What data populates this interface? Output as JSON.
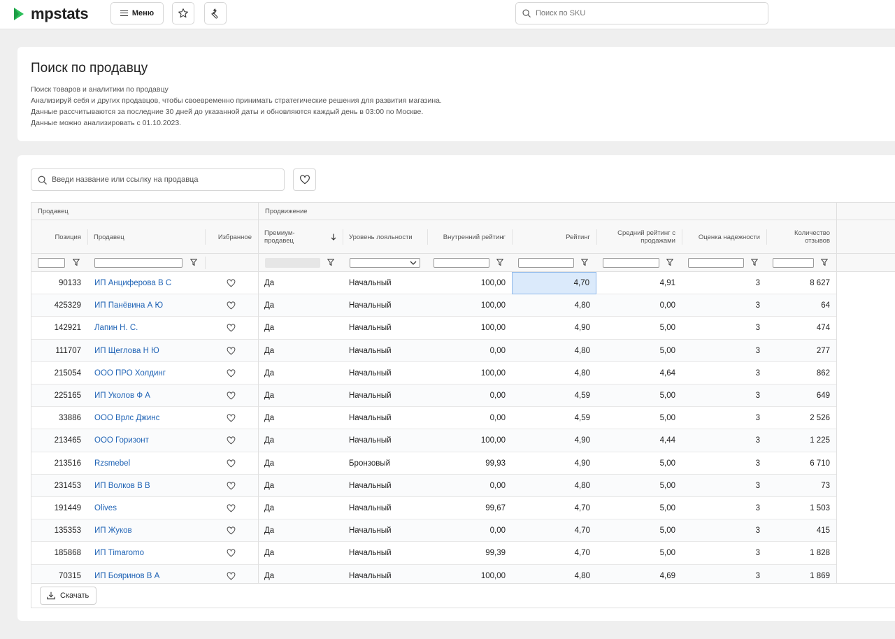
{
  "app": {
    "logo_text": "mpstats",
    "menu_label": "Меню",
    "sku_search_placeholder": "Поиск по SKU",
    "brand_color": "#2bbf59"
  },
  "info": {
    "title": "Поиск по продавцу",
    "lines": [
      "Поиск товаров и аналитики по продавцу",
      "Анализируй себя и других продавцов, чтобы своевременно принимать стратегические решения для развития магазина.",
      "Данные рассчитываются за последние 30 дней до указанной даты и обновляются каждый день в 03:00 по Москве.",
      "Данные можно анализировать с 01.10.2023."
    ]
  },
  "table": {
    "search_placeholder": "Введи название или ссылку на продавца",
    "groups": {
      "seller": "Продавец",
      "promotion": "Продвижение"
    },
    "columns": {
      "position": "Позиция",
      "seller": "Продавец",
      "favorite": "Избранное",
      "premium_line1": "Премиум-",
      "premium_line2": "продавец",
      "loyalty": "Уровень лояльности",
      "internal_rating": "Внутренний рейтинг",
      "rating": "Рейтинг",
      "avg_rating_line1": "Средний рейтинг с",
      "avg_rating_line2": "продажами",
      "reliability": "Оценка надежности",
      "reviews_line1": "Количество",
      "reviews_line2": "отзывов"
    },
    "rows": [
      {
        "position": "90133",
        "seller": "ИП Анциферова В С",
        "premium": "Да",
        "loyalty": "Начальный",
        "internal": "100,00",
        "rating": "4,70",
        "avg": "4,91",
        "reliability": "3",
        "reviews": "8 627"
      },
      {
        "position": "425329",
        "seller": "ИП Панёвина А Ю",
        "premium": "Да",
        "loyalty": "Начальный",
        "internal": "100,00",
        "rating": "4,80",
        "avg": "0,00",
        "reliability": "3",
        "reviews": "64"
      },
      {
        "position": "142921",
        "seller": "Лапин Н. С.",
        "premium": "Да",
        "loyalty": "Начальный",
        "internal": "100,00",
        "rating": "4,90",
        "avg": "5,00",
        "reliability": "3",
        "reviews": "474"
      },
      {
        "position": "111707",
        "seller": "ИП Щеглова Н Ю",
        "premium": "Да",
        "loyalty": "Начальный",
        "internal": "0,00",
        "rating": "4,80",
        "avg": "5,00",
        "reliability": "3",
        "reviews": "277"
      },
      {
        "position": "215054",
        "seller": "ООО ПРО Холдинг",
        "premium": "Да",
        "loyalty": "Начальный",
        "internal": "100,00",
        "rating": "4,80",
        "avg": "4,64",
        "reliability": "3",
        "reviews": "862"
      },
      {
        "position": "225165",
        "seller": "ИП Уколов Ф А",
        "premium": "Да",
        "loyalty": "Начальный",
        "internal": "0,00",
        "rating": "4,59",
        "avg": "5,00",
        "reliability": "3",
        "reviews": "649"
      },
      {
        "position": "33886",
        "seller": "ООО Врлс Джинс",
        "premium": "Да",
        "loyalty": "Начальный",
        "internal": "0,00",
        "rating": "4,59",
        "avg": "5,00",
        "reliability": "3",
        "reviews": "2 526"
      },
      {
        "position": "213465",
        "seller": "ООО Горизонт",
        "premium": "Да",
        "loyalty": "Начальный",
        "internal": "100,00",
        "rating": "4,90",
        "avg": "4,44",
        "reliability": "3",
        "reviews": "1 225"
      },
      {
        "position": "213516",
        "seller": "Rzsmebel",
        "premium": "Да",
        "loyalty": "Бронзовый",
        "internal": "99,93",
        "rating": "4,90",
        "avg": "5,00",
        "reliability": "3",
        "reviews": "6 710"
      },
      {
        "position": "231453",
        "seller": "ИП Волков В В",
        "premium": "Да",
        "loyalty": "Начальный",
        "internal": "0,00",
        "rating": "4,80",
        "avg": "5,00",
        "reliability": "3",
        "reviews": "73"
      },
      {
        "position": "191449",
        "seller": "Olives",
        "premium": "Да",
        "loyalty": "Начальный",
        "internal": "99,67",
        "rating": "4,70",
        "avg": "5,00",
        "reliability": "3",
        "reviews": "1 503"
      },
      {
        "position": "135353",
        "seller": "ИП Жуков",
        "premium": "Да",
        "loyalty": "Начальный",
        "internal": "0,00",
        "rating": "4,70",
        "avg": "5,00",
        "reliability": "3",
        "reviews": "415"
      },
      {
        "position": "185868",
        "seller": "ИП Timaromo",
        "premium": "Да",
        "loyalty": "Начальный",
        "internal": "99,39",
        "rating": "4,70",
        "avg": "5,00",
        "reliability": "3",
        "reviews": "1 828"
      },
      {
        "position": "70315",
        "seller": "ИП Бояринов В А",
        "premium": "Да",
        "loyalty": "Начальный",
        "internal": "100,00",
        "rating": "4,80",
        "avg": "4,69",
        "reliability": "3",
        "reviews": "1 869"
      }
    ],
    "download_label": "Скачать",
    "link_color": "#1f63b5"
  }
}
